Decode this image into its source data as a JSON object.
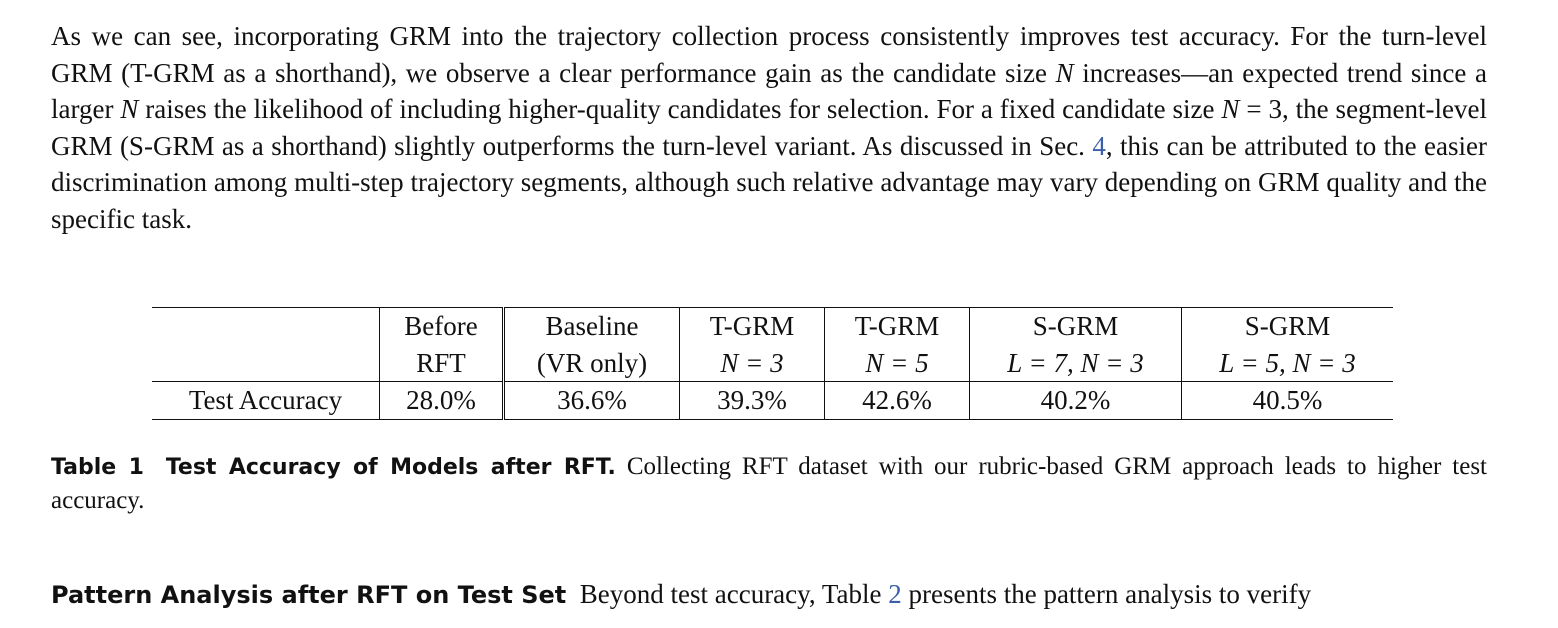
{
  "paragraph": {
    "runs": [
      "As we can see, incorporating GRM into the trajectory collection process consistently improves test accuracy. For the turn-level GRM (T-GRM as a shorthand), we observe a clear performance gain as the candidate size ",
      "N",
      " increases—an expected trend since a larger ",
      "N",
      " raises the likelihood of including higher-quality candidates for selection. For a fixed candidate size ",
      "N",
      " = 3",
      ", the segment-level GRM (S-GRM as a shorthand) slightly outperforms the turn-level variant. As discussed in Sec. ",
      "4",
      ", this can be attributed to the easier discrimination among multi-step trajectory segments, although such relative advantage may vary depending on GRM quality and the specific task."
    ]
  },
  "table": {
    "columns": [
      {
        "line1": "Before",
        "line2": "RFT"
      },
      {
        "line1": "Baseline",
        "line2": "(VR only)"
      },
      {
        "line1": "T-GRM",
        "line2": "N = 3"
      },
      {
        "line1": "T-GRM",
        "line2": "N = 5"
      },
      {
        "line1": "S-GRM",
        "line2": "L = 7, N = 3"
      },
      {
        "line1": "S-GRM",
        "line2": "L = 5, N = 3"
      }
    ],
    "row": {
      "label": "Test Accuracy",
      "values": [
        "28.0%",
        "36.6%",
        "39.3%",
        "42.6%",
        "40.2%",
        "40.5%"
      ]
    }
  },
  "caption": {
    "number": "Table 1",
    "title": "Test Accuracy of Models after RFT.",
    "text": "Collecting RFT dataset with our rubric-based GRM approach leads to higher test accuracy."
  },
  "section": {
    "heading": "Pattern Analysis after RFT on Test Set",
    "runs": [
      "Beyond test accuracy, Table ",
      "2",
      " presents the pattern analysis to verify"
    ]
  }
}
